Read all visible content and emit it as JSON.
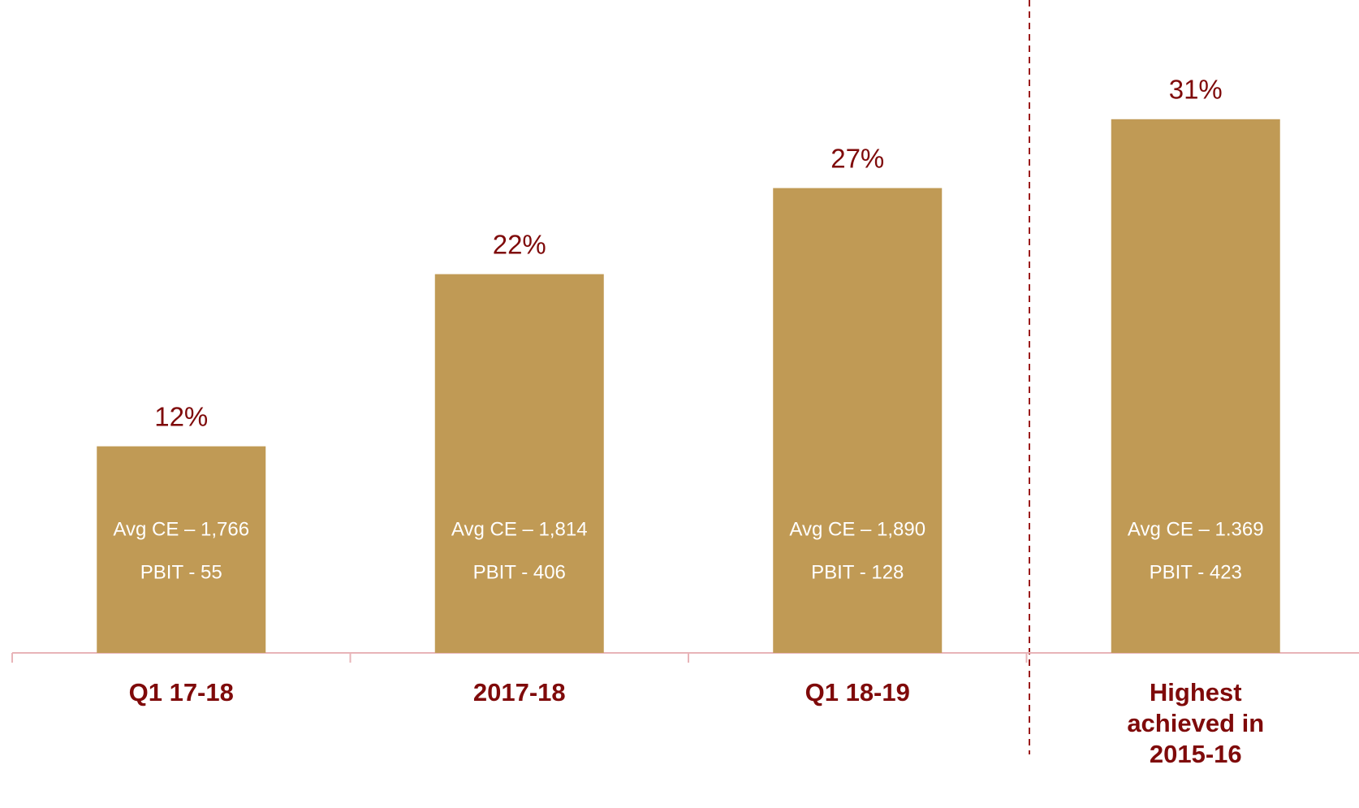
{
  "chart_data": {
    "type": "bar",
    "categories": [
      "Q1 17-18",
      "2017-18",
      "Q1 18-19",
      "Highest achieved in 2015-16"
    ],
    "values": [
      12,
      22,
      27,
      31
    ],
    "value_labels": [
      "12%",
      "22%",
      "27%",
      "31%"
    ],
    "bar_notes": [
      [
        "Avg CE – 1,766",
        "PBIT - 55"
      ],
      [
        "Avg CE – 1,814",
        "PBIT - 406"
      ],
      [
        "Avg CE – 1,890",
        "PBIT - 128"
      ],
      [
        "Avg CE – 1.369",
        "PBIT - 423"
      ]
    ],
    "color": "#c09a55",
    "label_color": "#7f0a0a"
  }
}
